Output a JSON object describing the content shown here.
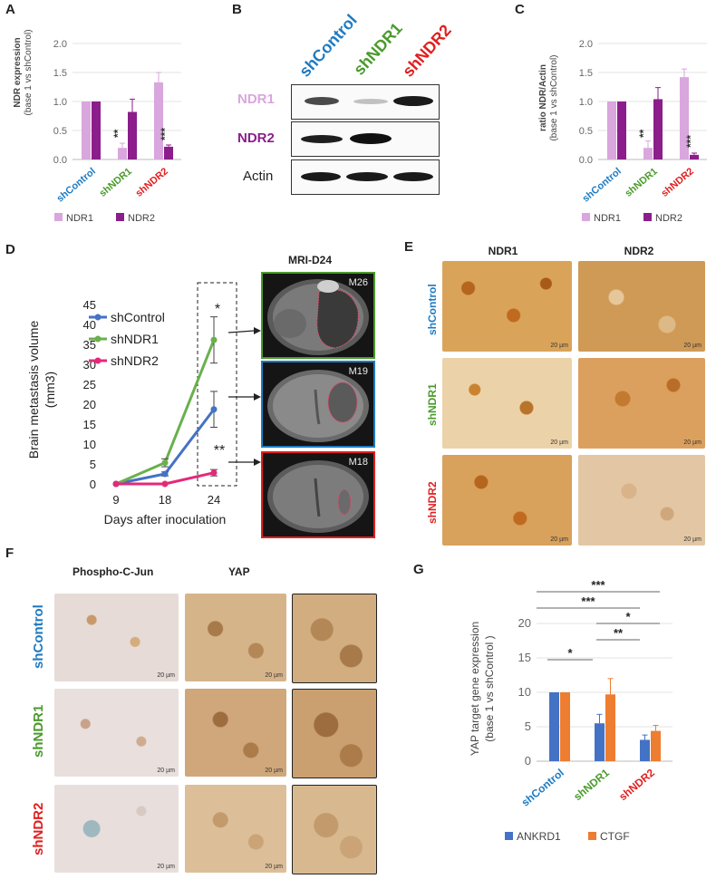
{
  "panels": {
    "A": "A",
    "B": "B",
    "C": "C",
    "D": "D",
    "E": "E",
    "F": "F",
    "G": "G"
  },
  "colors": {
    "shControl": "#1f7bc1",
    "shNDR1": "#4a9a2c",
    "shNDR2": "#e02020",
    "ndr1": "#d9a6dd",
    "ndr2": "#8b1e8b",
    "ankrd1": "#4472c4",
    "ctgf": "#ed7d31"
  },
  "panelA": {
    "ylabel_line1": "NDR expression",
    "ylabel_line2": "(base 1 vs shControl)",
    "legend": [
      "NDR1",
      "NDR2"
    ],
    "chart_data": {
      "type": "bar",
      "categories": [
        "shControl",
        "shNDR1",
        "shNDR2"
      ],
      "series": [
        {
          "name": "NDR1",
          "values": [
            1.0,
            0.2,
            1.33
          ],
          "errors": [
            0,
            0.08,
            0.17
          ]
        },
        {
          "name": "NDR2",
          "values": [
            1.0,
            0.82,
            0.22
          ],
          "errors": [
            0,
            0.22,
            0.03
          ]
        }
      ],
      "yticks": [
        "0.0",
        "0.5",
        "1.0",
        "1.5",
        "2.0"
      ],
      "ylim": [
        0,
        2.0
      ],
      "annotations": [
        "**",
        "***"
      ]
    }
  },
  "panelB": {
    "headers": [
      "shControl",
      "shNDR1",
      "shNDR2"
    ],
    "rows": [
      "NDR1",
      "NDR2",
      "Actin"
    ]
  },
  "panelC": {
    "ylabel_line1": "ratio NDR/Actin",
    "ylabel_line2": "(base 1 vs shControl)",
    "legend": [
      "NDR1",
      "NDR2"
    ],
    "chart_data": {
      "type": "bar",
      "categories": [
        "shControl",
        "shNDR1",
        "shNDR2"
      ],
      "series": [
        {
          "name": "NDR1",
          "values": [
            1.0,
            0.2,
            1.42
          ],
          "errors": [
            0,
            0.12,
            0.14
          ]
        },
        {
          "name": "NDR2",
          "values": [
            1.0,
            1.04,
            0.08
          ],
          "errors": [
            0,
            0.2,
            0.03
          ]
        }
      ],
      "yticks": [
        "0.0",
        "0.5",
        "1.0",
        "1.5",
        "2.0"
      ],
      "ylim": [
        0,
        2.0
      ],
      "annotations": [
        "**",
        "***"
      ]
    }
  },
  "panelD": {
    "ylabel_line1": "Brain metastasis volume",
    "ylabel_line2": "(mm3)",
    "xlabel": "Days after inoculation",
    "mri_title": "MRI-D24",
    "mri_labels": [
      "M26",
      "M19",
      "M18"
    ],
    "chart_data": {
      "type": "line",
      "x": [
        9,
        18,
        24
      ],
      "series": [
        {
          "name": "shControl",
          "values": [
            0,
            2.5,
            18.7
          ],
          "errors": [
            0,
            0.5,
            4.5
          ]
        },
        {
          "name": "shNDR1",
          "values": [
            0,
            5.3,
            36.1
          ],
          "errors": [
            0,
            1.0,
            5.8
          ]
        },
        {
          "name": "shNDR2",
          "values": [
            0,
            0,
            2.8
          ],
          "errors": [
            0,
            0,
            0.8
          ]
        }
      ],
      "yticks": [
        "0",
        "5",
        "10",
        "15",
        "20",
        "25",
        "30",
        "35",
        "40",
        "45"
      ],
      "ylim": [
        0,
        45
      ],
      "annotations": [
        "*",
        "**"
      ]
    }
  },
  "panelE": {
    "columns": [
      "NDR1",
      "NDR2"
    ],
    "rows": [
      "shControl",
      "shNDR1",
      "shNDR2"
    ],
    "scale": "20 µm"
  },
  "panelF": {
    "columns": [
      "Phospho-C-Jun",
      "YAP"
    ],
    "rows": [
      "shControl",
      "shNDR1",
      "shNDR2"
    ],
    "scale": "20 µm"
  },
  "panelG": {
    "ylabel_line1": "YAP target gene expression",
    "ylabel_line2": "(base 1 vs shControl )",
    "legend": [
      "ANKRD1",
      "CTGF"
    ],
    "chart_data": {
      "type": "bar",
      "categories": [
        "shControl",
        "shNDR1",
        "shNDR2"
      ],
      "series": [
        {
          "name": "ANKRD1",
          "values": [
            10.0,
            5.5,
            3.1
          ],
          "errors": [
            0,
            1.3,
            0.7
          ]
        },
        {
          "name": "CTGF",
          "values": [
            10.0,
            9.7,
            4.4
          ],
          "errors": [
            0,
            2.3,
            0.8
          ]
        }
      ],
      "yticks": [
        "0",
        "5",
        "10",
        "15",
        "20"
      ],
      "ylim": [
        0,
        20
      ],
      "annotations": [
        "***",
        "***",
        "*",
        "**",
        "*"
      ]
    }
  }
}
